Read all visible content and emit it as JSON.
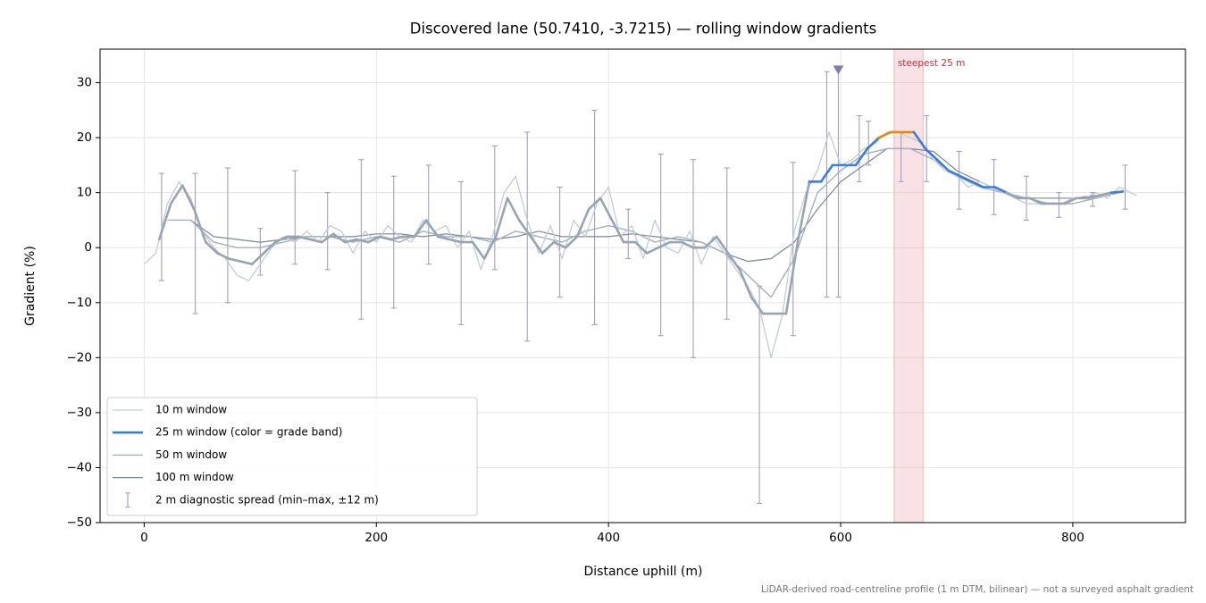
{
  "chart_data": {
    "type": "line",
    "title": "Discovered lane (50.7410, -3.7215) — rolling window gradients",
    "xlabel": "Distance uphill (m)",
    "ylabel": "Gradient (%)",
    "footnote": "LiDAR-derived road-centreline profile (1 m DTM, bilinear) — not a surveyed asphalt gradient",
    "xlim": [
      -38,
      897
    ],
    "ylim": [
      -50,
      36.1
    ],
    "xticks": [
      0,
      200,
      400,
      600,
      800
    ],
    "yticks": [
      {
        "value": -50,
        "label": "−50"
      },
      {
        "value": -40,
        "label": "−40"
      },
      {
        "value": -30,
        "label": "−30"
      },
      {
        "value": -20,
        "label": "−20"
      },
      {
        "value": -10,
        "label": "−10"
      },
      0,
      10,
      20,
      30
    ],
    "grid": true,
    "legend": "lower left",
    "series": [
      {
        "name": "10 m window",
        "color": "#c3ccd5",
        "width": 1.3,
        "x": [
          0,
          10,
          20,
          30,
          40,
          50,
          60,
          70,
          80,
          90,
          100,
          110,
          120,
          130,
          140,
          150,
          160,
          170,
          180,
          190,
          200,
          210,
          220,
          230,
          240,
          250,
          260,
          270,
          280,
          290,
          300,
          310,
          320,
          330,
          340,
          350,
          360,
          370,
          380,
          390,
          400,
          410,
          420,
          430,
          440,
          450,
          460,
          470,
          480,
          490,
          500,
          510,
          520,
          530,
          540,
          550,
          560,
          570,
          580,
          590,
          600,
          610,
          620,
          630,
          640,
          650,
          660,
          670,
          680,
          690,
          700,
          710,
          720,
          730,
          740,
          750,
          760,
          770,
          780,
          790,
          800,
          810,
          820,
          830,
          840,
          850,
          855
        ],
        "values": [
          -3,
          -1,
          8,
          12,
          9,
          3,
          0,
          -2,
          -5,
          -6,
          -3,
          0,
          2,
          1,
          3,
          1,
          4,
          3,
          -1,
          3,
          1,
          4,
          2,
          1,
          5,
          3,
          4,
          0,
          3,
          -4,
          2,
          10,
          13,
          5,
          -1,
          4,
          -2,
          5,
          2,
          8,
          11,
          2,
          4,
          -2,
          5,
          0,
          -1,
          3,
          -3,
          2,
          -1,
          -4,
          -7,
          -11,
          -20,
          -12,
          3,
          10,
          14,
          21,
          15,
          16,
          18,
          19,
          21,
          21,
          20,
          19,
          16,
          14,
          13,
          11,
          12,
          11,
          10,
          9,
          8,
          8,
          8,
          8,
          9,
          9,
          10,
          9,
          11,
          10,
          9.5
        ]
      },
      {
        "name": "25 m window (color = grade band)",
        "color": "#3b7ddd",
        "width": 2.6,
        "band_edges": [
          10,
          20
        ],
        "band_colors": [
          "#98a4b2",
          "#3b7ddd",
          "#e08a10"
        ],
        "x": [
          13,
          23,
          33,
          43,
          53,
          63,
          73,
          83,
          93,
          103,
          113,
          123,
          133,
          143,
          153,
          163,
          173,
          183,
          193,
          203,
          213,
          223,
          233,
          243,
          253,
          263,
          273,
          283,
          293,
          303,
          313,
          323,
          333,
          343,
          353,
          363,
          373,
          383,
          393,
          403,
          413,
          423,
          433,
          443,
          453,
          463,
          473,
          483,
          493,
          503,
          513,
          523,
          533,
          543,
          553,
          563,
          573,
          583,
          593,
          603,
          613,
          623,
          633,
          643,
          653,
          663,
          673,
          683,
          693,
          703,
          713,
          723,
          733,
          743,
          753,
          763,
          773,
          783,
          793,
          803,
          813,
          823,
          833,
          843
        ],
        "values": [
          1.5,
          8,
          11.3,
          7,
          1,
          -1,
          -2,
          -2.5,
          -3,
          -1,
          1,
          2,
          2,
          1.5,
          1,
          2.5,
          1,
          1.5,
          1,
          2,
          1.5,
          2,
          2,
          5,
          2,
          1.5,
          1,
          1,
          -2,
          2,
          9,
          5,
          2,
          -1,
          1,
          0,
          2,
          7,
          9,
          5,
          1,
          1,
          -1,
          0,
          1,
          1,
          0,
          0,
          2,
          -1,
          -4,
          -9,
          -12,
          -12,
          -12,
          1,
          12,
          12,
          15,
          15,
          15,
          18,
          20,
          21,
          21,
          21,
          18,
          16,
          14,
          13,
          12,
          11,
          11,
          10,
          9,
          9,
          8,
          8,
          8,
          9,
          9,
          9.5,
          10,
          10.2
        ]
      },
      {
        "name": "50 m window",
        "color": "#a4afbd",
        "width": 1.4,
        "x": [
          20,
          40,
          60,
          80,
          100,
          120,
          140,
          160,
          180,
          200,
          220,
          240,
          260,
          280,
          300,
          320,
          340,
          360,
          380,
          400,
          420,
          440,
          460,
          480,
          500,
          520,
          540,
          560,
          580,
          600,
          620,
          640,
          660,
          680,
          700,
          720,
          740,
          760,
          780,
          800,
          820,
          840
        ],
        "values": [
          5,
          5,
          1,
          0,
          0,
          1,
          2,
          2,
          1,
          2,
          1,
          3,
          2,
          2,
          1,
          3,
          2,
          1,
          3,
          4,
          3,
          1,
          2,
          1,
          -1,
          -5,
          -9,
          -2,
          10,
          14,
          17,
          18,
          18,
          16,
          13,
          11,
          10,
          9,
          8,
          8,
          9,
          10
        ]
      },
      {
        "name": "100 m window",
        "color": "#7d8694",
        "width": 1.2,
        "x": [
          40,
          60,
          80,
          100,
          120,
          140,
          160,
          180,
          200,
          220,
          240,
          260,
          280,
          300,
          320,
          340,
          360,
          380,
          400,
          420,
          440,
          460,
          480,
          500,
          520,
          540,
          560,
          580,
          600,
          620,
          640,
          660,
          680,
          700,
          720,
          740,
          760,
          780,
          800,
          820
        ],
        "values": [
          5,
          2,
          1.5,
          1,
          1.5,
          2,
          2,
          2,
          2.5,
          2.5,
          2,
          2.5,
          2,
          1.5,
          2,
          3,
          2,
          2,
          2,
          2.5,
          2,
          1.5,
          1,
          -1,
          -2.5,
          -2,
          1,
          7,
          12,
          15,
          18,
          18,
          17.5,
          14,
          12,
          10,
          9,
          9,
          9,
          9.5
        ]
      }
    ],
    "errorbars": {
      "name": "2 m diagnostic spread (min–max, ±12 m)",
      "color": "#a59dbf",
      "x": [
        15,
        44,
        72,
        100,
        130,
        158,
        187,
        215,
        245,
        273,
        302,
        330,
        358,
        388,
        417,
        445,
        473,
        502,
        530,
        559,
        588,
        598,
        616,
        624,
        652,
        674,
        702,
        732,
        760,
        788,
        817,
        845
      ],
      "low": [
        -6,
        -12,
        -10,
        -5,
        -3,
        -4,
        -13,
        -11,
        -3,
        -14,
        -4,
        -17,
        -9,
        -14,
        -2,
        -16,
        -20,
        -13,
        -46.5,
        -16,
        -9,
        -9,
        12,
        15,
        12,
        12,
        7,
        6,
        5,
        5.5,
        7.5,
        7
      ],
      "high": [
        13.5,
        13.5,
        14.5,
        3.5,
        14,
        10,
        16,
        13,
        15,
        12,
        18.5,
        21,
        11,
        25,
        7,
        17,
        16,
        14.5,
        -7,
        15.5,
        32,
        32.5,
        24,
        23,
        21,
        24,
        17.5,
        16,
        13,
        10,
        10,
        15
      ]
    },
    "highlight": {
      "label": "steepest 25 m",
      "x_range": [
        646,
        671
      ],
      "color": "#e8a0a8",
      "label_color": "#c0303a"
    },
    "marker": {
      "x": 598,
      "y": 32.3,
      "color": "#8a7aa8"
    }
  }
}
